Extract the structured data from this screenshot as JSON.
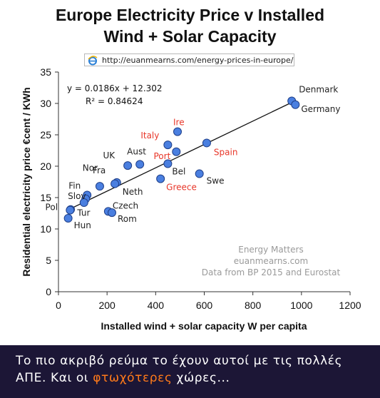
{
  "chart_data": {
    "type": "scatter",
    "title_lines": [
      "Europe Electricity Price v Installed",
      "Wind + Solar Capacity"
    ],
    "source_url": "http://euanmearns.com/energy-prices-in-europe/",
    "xlabel": "Installed wind + solar capacity W per capita",
    "ylabel": "Residential electricity price €cent / KWh",
    "xlim": [
      0,
      1200
    ],
    "ylim": [
      0,
      35
    ],
    "xticks": [
      "0",
      "200",
      "400",
      "600",
      "800",
      "1000",
      "1200"
    ],
    "yticks": [
      "0",
      "5",
      "10",
      "15",
      "20",
      "25",
      "30",
      "35"
    ],
    "equation": "y = 0.0186x + 12.302",
    "r_squared": "R² = 0.84624",
    "trendline": {
      "slope": 0.0186,
      "intercept": 12.302,
      "x_range": [
        40,
        960
      ]
    },
    "credits": [
      "Energy Matters",
      "euanmearns.com",
      "Data from BP 2015 and Eurostat"
    ],
    "colors": {
      "point": "#4a7fe0",
      "point_stroke": "#1f3f88",
      "highlight_label": "#e8372a",
      "label": "#222222",
      "axis": "#333333"
    },
    "points": [
      {
        "label": "Denmark",
        "x": 960,
        "y": 30.4,
        "highlight": false
      },
      {
        "label": "Germany",
        "x": 975,
        "y": 29.8,
        "highlight": false
      },
      {
        "label": "Ire",
        "x": 490,
        "y": 25.5,
        "highlight": true
      },
      {
        "label": "Italy",
        "x": 450,
        "y": 23.4,
        "highlight": true
      },
      {
        "label": "Spain",
        "x": 610,
        "y": 23.7,
        "highlight": true
      },
      {
        "label": "Port",
        "x": 485,
        "y": 22.3,
        "highlight": true
      },
      {
        "label": "Aust",
        "x": 335,
        "y": 20.3,
        "highlight": false
      },
      {
        "label": "UK",
        "x": 285,
        "y": 20.1,
        "highlight": false
      },
      {
        "label": "Bel",
        "x": 450,
        "y": 20.4,
        "highlight": false
      },
      {
        "label": "Swe",
        "x": 580,
        "y": 18.8,
        "highlight": false
      },
      {
        "label": "Greece",
        "x": 420,
        "y": 18.0,
        "highlight": true
      },
      {
        "label": "Fra",
        "x": 170,
        "y": 16.8,
        "highlight": false
      },
      {
        "label": "Neth",
        "x": 240,
        "y": 17.4,
        "highlight": false
      },
      {
        "label": "Nor",
        "x": 232,
        "y": 17.2,
        "highlight": false
      },
      {
        "label": "Fin",
        "x": 118,
        "y": 15.4,
        "highlight": false
      },
      {
        "label": "Slov",
        "x": 112,
        "y": 14.8,
        "highlight": false
      },
      {
        "label": "",
        "x": 105,
        "y": 14.2,
        "highlight": false
      },
      {
        "label": "Pol",
        "x": 50,
        "y": 13.1,
        "highlight": false
      },
      {
        "label": "Tur",
        "x": 48,
        "y": 13.0,
        "highlight": false
      },
      {
        "label": "Czech",
        "x": 205,
        "y": 12.8,
        "highlight": false
      },
      {
        "label": "Rom",
        "x": 220,
        "y": 12.6,
        "highlight": false
      },
      {
        "label": "Hun",
        "x": 40,
        "y": 11.7,
        "highlight": false
      }
    ]
  },
  "banner": {
    "caption_part1": "Το πιο ακριβό ρεύμα το έχουν αυτοί με τις πολλές ΑΠΕ. Και οι ",
    "caption_highlight": "φτωχότερες",
    "caption_part2": " χώρες..."
  }
}
